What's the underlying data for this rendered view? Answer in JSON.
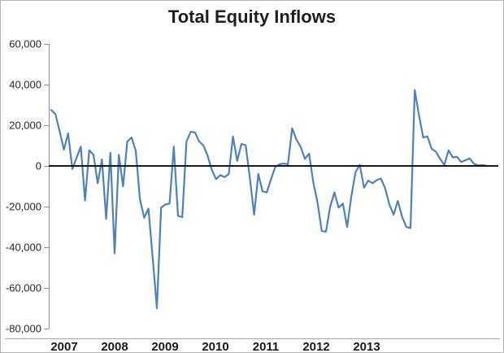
{
  "title": "Total Equity Inflows",
  "colors": {
    "line": "#4f81bd",
    "zero_line": "#1a1a1a",
    "axis": "#8c8c8c",
    "text": "#262626",
    "frame_border": "#b3b3b3",
    "background": "#ffffff"
  },
  "chart_data": {
    "type": "line",
    "title": "Total Equity Inflows",
    "xlabel": "",
    "ylabel": "",
    "frequency": "monthly observations starting January 2007",
    "x_tick_labels": [
      "2007",
      "2008",
      "2009",
      "2010",
      "2011",
      "2012",
      "2013"
    ],
    "y_tick_labels": [
      "60,000",
      "40,000",
      "20,000",
      "0",
      "-20,000",
      "-40,000",
      "-60,000",
      "-80,000"
    ],
    "ylim": [
      -80000,
      60000
    ],
    "y_interval": 20000,
    "grid": false,
    "legend": "none",
    "zero_line": true,
    "series": [
      {
        "name": "Total Equity Inflows",
        "color": "#4f81bd",
        "values": [
          27500,
          25500,
          17000,
          8000,
          16000,
          -1500,
          4000,
          9500,
          -17000,
          7700,
          5500,
          -8500,
          3200,
          -26000,
          6500,
          -43000,
          5500,
          -10000,
          12000,
          14000,
          7500,
          -16500,
          -25500,
          -21000,
          -45000,
          -70000,
          -20500,
          -19000,
          -18500,
          9500,
          -24500,
          -25200,
          12000,
          16800,
          16500,
          12100,
          10100,
          5000,
          -1900,
          -6500,
          -4500,
          -5500,
          -4000,
          14500,
          2500,
          10800,
          10200,
          -6000,
          -24000,
          -4000,
          -12500,
          -13000,
          -6500,
          -500,
          800,
          1200,
          800,
          18500,
          13000,
          9500,
          3500,
          6000,
          -8000,
          -18000,
          -32000,
          -32300,
          -20000,
          -13000,
          -20500,
          -18500,
          -30000,
          -15000,
          -3000,
          500,
          -10700,
          -7200,
          -8500,
          -7000,
          -6200,
          -11000,
          -19000,
          -24000,
          -17200,
          -25000,
          -30000,
          -30500,
          37300,
          25000,
          14000,
          14500,
          8400,
          7000,
          3500,
          500,
          7700,
          4200,
          4500,
          1900,
          2800,
          3700,
          1100,
          300,
          500,
          100
        ]
      }
    ]
  }
}
